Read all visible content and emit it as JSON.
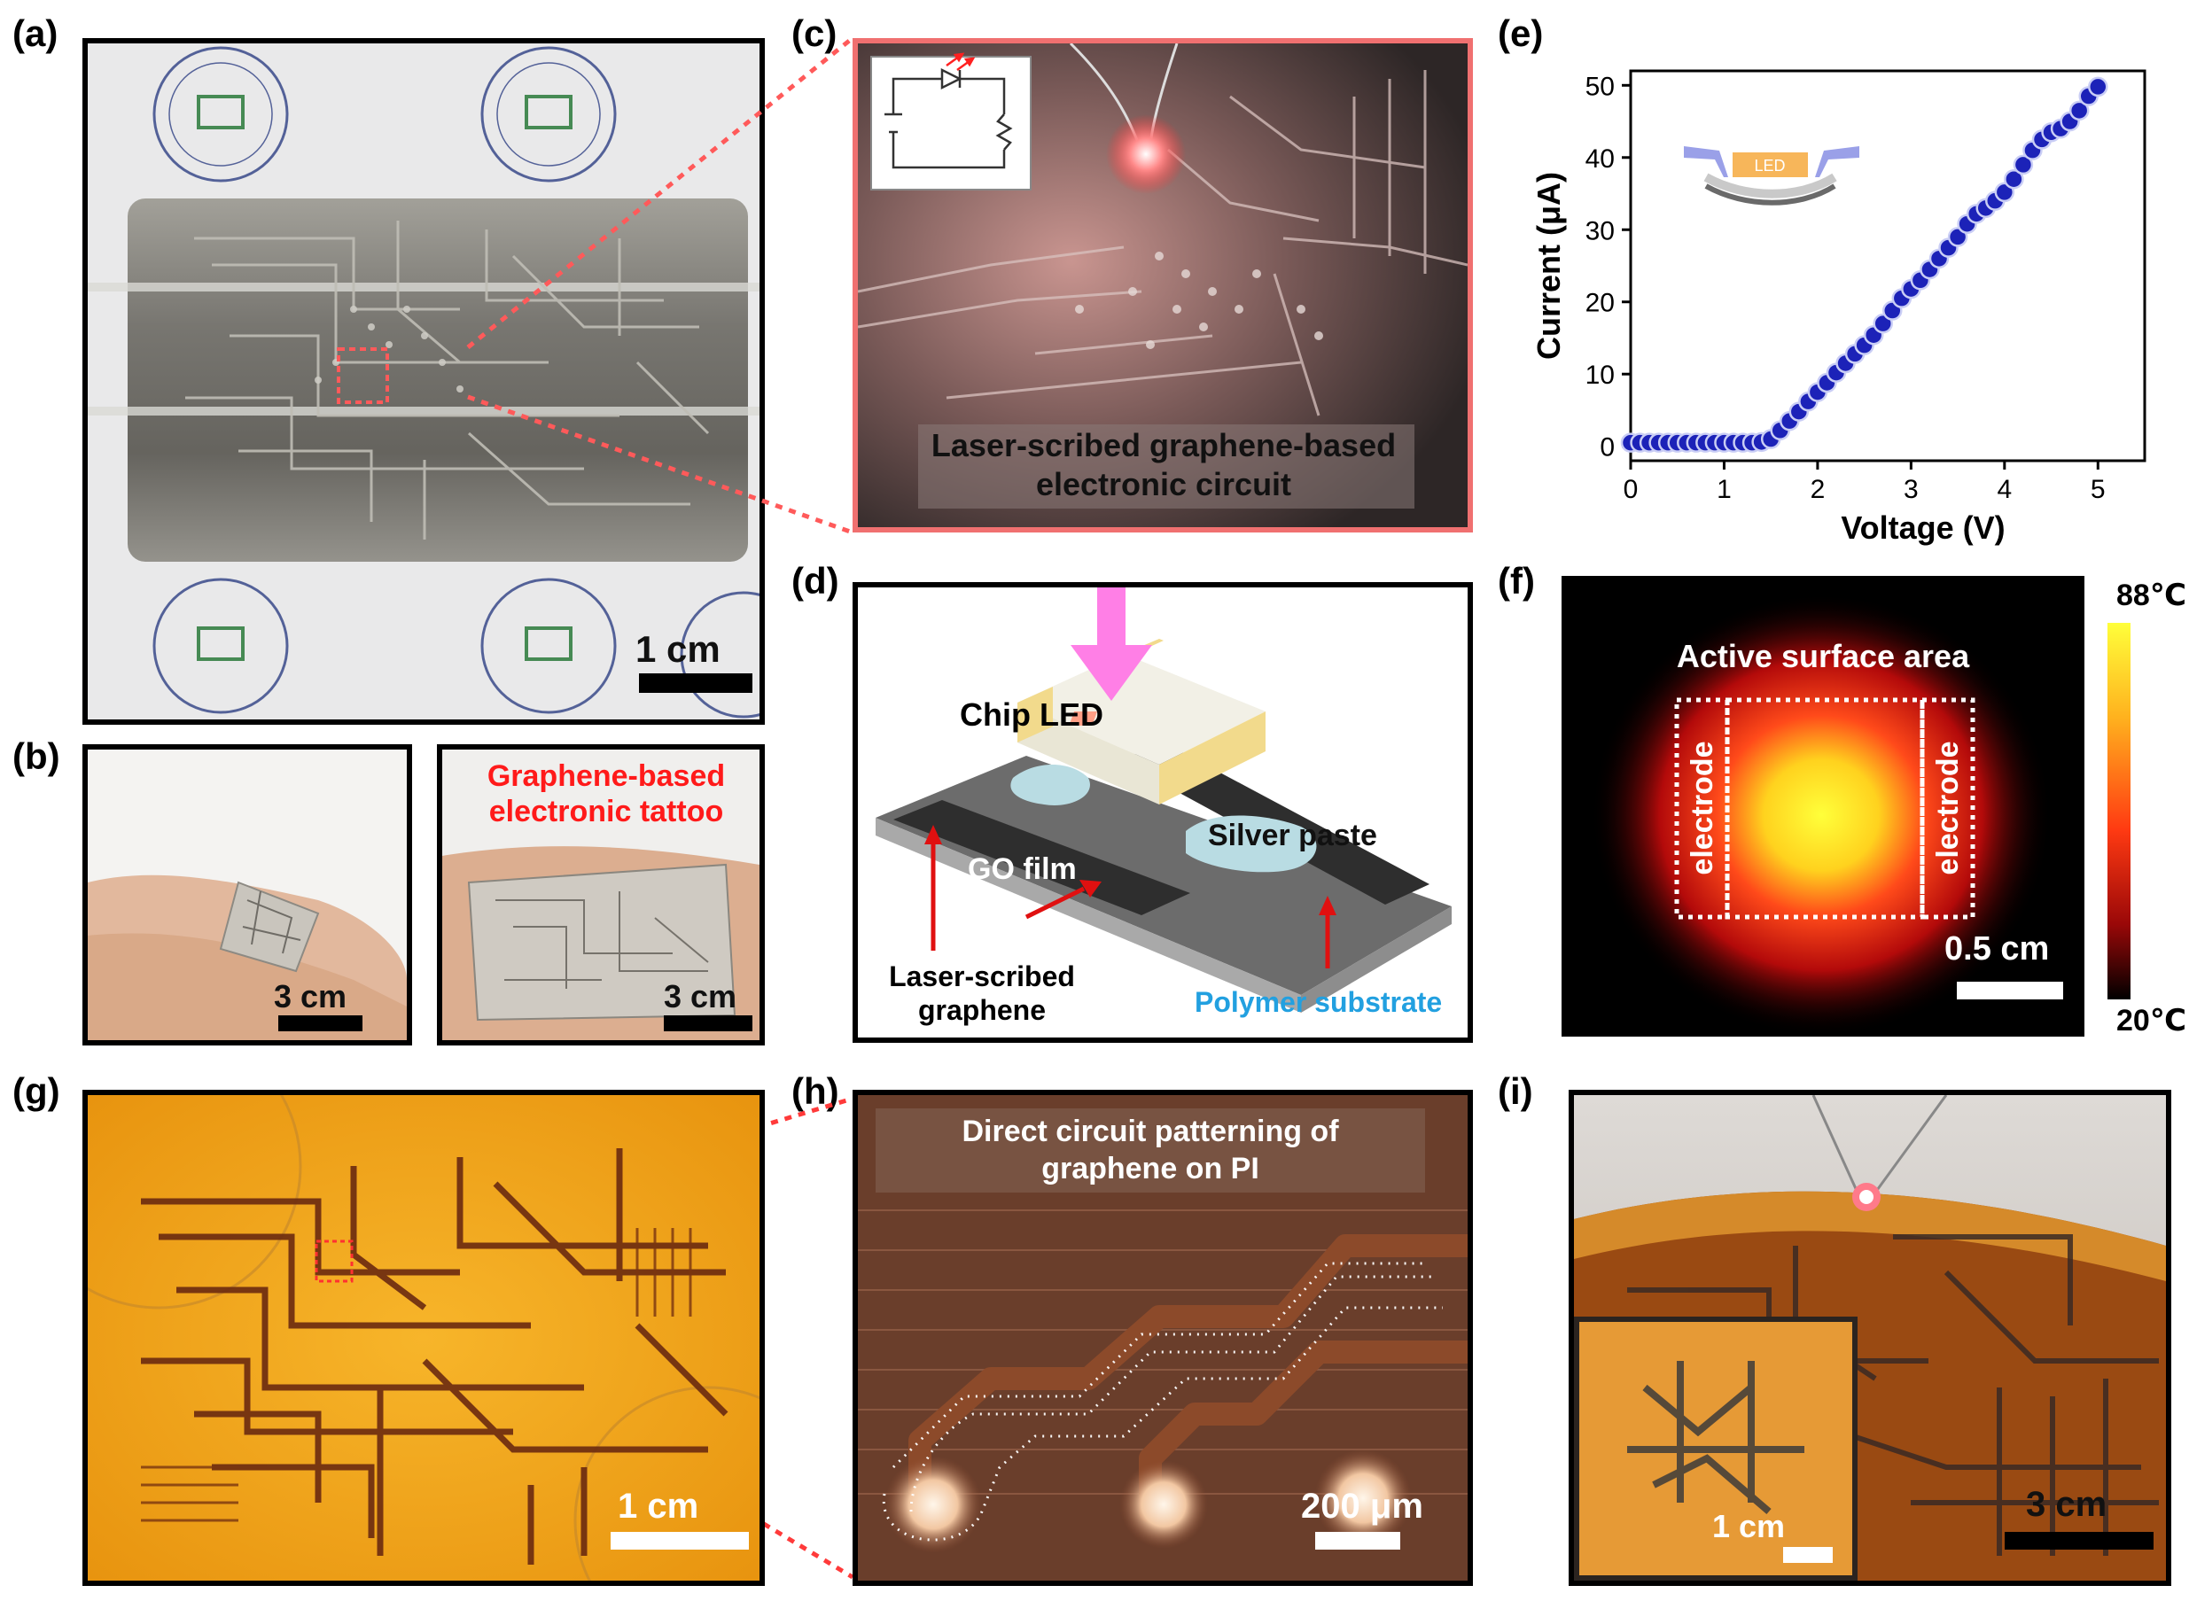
{
  "panel_labels": {
    "a": "(a)",
    "b": "(b)",
    "c": "(c)",
    "d": "(d)",
    "e": "(e)",
    "f": "(f)",
    "g": "(g)",
    "h": "(h)",
    "i": "(i)"
  },
  "panel_a": {
    "scale": "1 cm"
  },
  "panel_b": {
    "scale_left": "3 cm",
    "scale_right": "3 cm",
    "title_line1": "Graphene-based",
    "title_line2": "electronic tattoo"
  },
  "panel_c": {
    "caption_line1": "Laser-scribed graphene-based",
    "caption_line2": "electronic circuit"
  },
  "panel_d": {
    "chip_led": "Chip LED",
    "silver_paste": "Silver paste",
    "go_film": "GO film",
    "lsg_line1": "Laser-scribed",
    "lsg_line2": "graphene",
    "polymer": "Polymer substrate"
  },
  "panel_f": {
    "title": "Active surface area",
    "electrode_left": "electrode",
    "electrode_right": "electrode",
    "scale": "0.5 cm",
    "cbar_max": "88℃",
    "cbar_min": "20℃"
  },
  "panel_g": {
    "scale": "1 cm"
  },
  "panel_h": {
    "caption_line1": "Direct circuit patterning of",
    "caption_line2": "graphene on PI",
    "scale": "200 μm"
  },
  "panel_i": {
    "scale_inset": "1 cm",
    "scale_main": "3 cm"
  },
  "chart_data": {
    "type": "scatter",
    "xlabel": "Voltage (V)",
    "ylabel": "Current  (μA)",
    "inset_label": "LED",
    "xlim": [
      0,
      5.5
    ],
    "ylim": [
      -2,
      52
    ],
    "xticks": [
      0,
      1,
      2,
      3,
      4,
      5
    ],
    "yticks": [
      0,
      10,
      20,
      30,
      40,
      50
    ],
    "color": "#1c22b8",
    "x": [
      0,
      0.1,
      0.2,
      0.3,
      0.4,
      0.5,
      0.6,
      0.7,
      0.8,
      0.9,
      1.0,
      1.1,
      1.2,
      1.3,
      1.4,
      1.5,
      1.6,
      1.7,
      1.8,
      1.9,
      2.0,
      2.1,
      2.2,
      2.3,
      2.4,
      2.5,
      2.6,
      2.7,
      2.8,
      2.9,
      3.0,
      3.1,
      3.2,
      3.3,
      3.4,
      3.5,
      3.6,
      3.7,
      3.8,
      3.9,
      4.0,
      4.1,
      4.2,
      4.3,
      4.4,
      4.5,
      4.6,
      4.7,
      4.8,
      4.9,
      5.0
    ],
    "y": [
      0.5,
      0.5,
      0.5,
      0.5,
      0.5,
      0.5,
      0.5,
      0.5,
      0.5,
      0.5,
      0.5,
      0.5,
      0.5,
      0.5,
      0.6,
      1.0,
      2.2,
      3.5,
      4.8,
      6.2,
      7.5,
      8.8,
      10.2,
      11.5,
      12.8,
      14.0,
      15.4,
      17.0,
      18.8,
      20.5,
      21.8,
      23.0,
      24.5,
      26.0,
      27.5,
      29.0,
      30.8,
      32.2,
      33.0,
      34.0,
      35.2,
      37.0,
      39.0,
      41.0,
      42.5,
      43.5,
      44.0,
      45.0,
      46.5,
      48.5,
      49.8
    ]
  }
}
